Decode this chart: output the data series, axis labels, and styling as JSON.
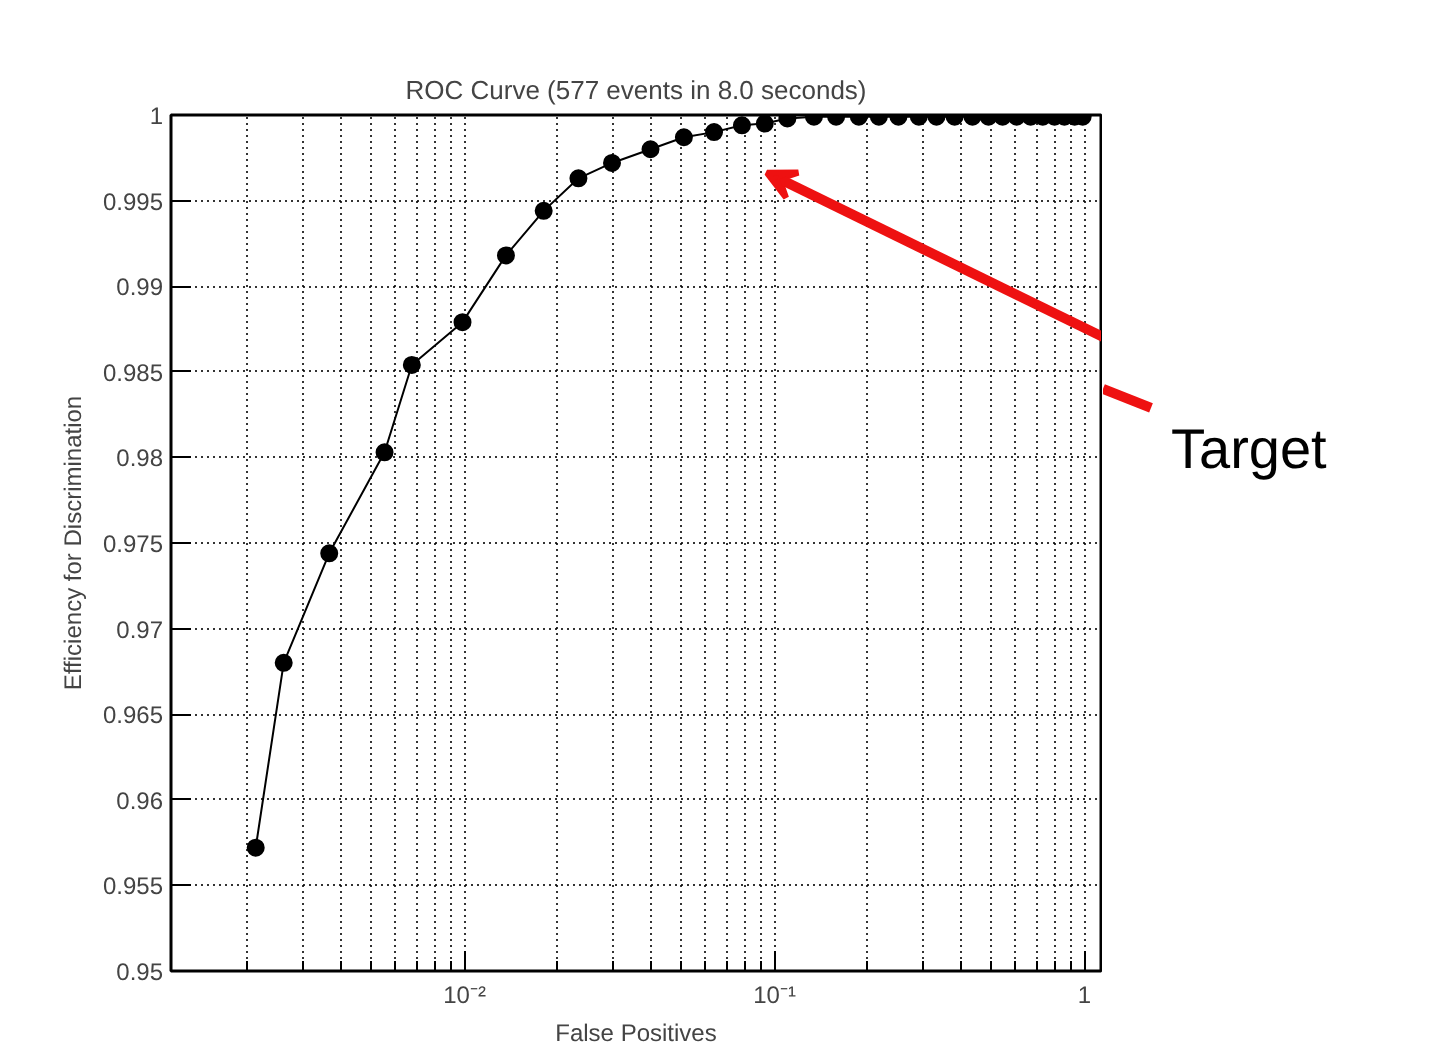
{
  "chart_data": {
    "type": "line",
    "title": "ROC Curve (577 events in 8.0 seconds)",
    "xlabel": "False Positives",
    "ylabel": "Efficiency for Discrimination",
    "log": "x",
    "grid": true,
    "marker": "circle",
    "line_style": "solid",
    "xlim": [
      0.00113,
      1.13
    ],
    "ylim": [
      0.95,
      1.0
    ],
    "xticks": [
      {
        "value": 0.002,
        "label": null
      },
      {
        "value": 0.003,
        "label": null
      },
      {
        "value": 0.004,
        "label": null
      },
      {
        "value": 0.005,
        "label": null
      },
      {
        "value": 0.006,
        "label": null
      },
      {
        "value": 0.007,
        "label": null
      },
      {
        "value": 0.008,
        "label": null
      },
      {
        "value": 0.009,
        "label": null
      },
      {
        "value": 0.01,
        "label": "10⁻²"
      },
      {
        "value": 0.02,
        "label": null
      },
      {
        "value": 0.03,
        "label": null
      },
      {
        "value": 0.04,
        "label": null
      },
      {
        "value": 0.05,
        "label": null
      },
      {
        "value": 0.06,
        "label": null
      },
      {
        "value": 0.07,
        "label": null
      },
      {
        "value": 0.08,
        "label": null
      },
      {
        "value": 0.09,
        "label": null
      },
      {
        "value": 0.1,
        "label": "10⁻¹"
      },
      {
        "value": 0.2,
        "label": null
      },
      {
        "value": 0.3,
        "label": null
      },
      {
        "value": 0.4,
        "label": null
      },
      {
        "value": 0.5,
        "label": null
      },
      {
        "value": 0.6,
        "label": null
      },
      {
        "value": 0.7,
        "label": null
      },
      {
        "value": 0.8,
        "label": null
      },
      {
        "value": 0.9,
        "label": null
      },
      1
    ],
    "yticks": [
      0.95,
      0.955,
      0.96,
      0.965,
      0.97,
      0.975,
      0.98,
      0.985,
      0.99,
      0.995,
      1
    ],
    "series": [
      {
        "color": "#000000",
        "x": [
          0.00212,
          0.00261,
          0.00366,
          0.00552,
          0.00676,
          0.00985,
          0.0136,
          0.018,
          0.0233,
          0.0299,
          0.0398,
          0.051,
          0.0638,
          0.0785,
          0.093,
          0.11,
          0.134,
          0.158,
          0.187,
          0.217,
          0.251,
          0.292,
          0.333,
          0.381,
          0.435,
          0.49,
          0.544,
          0.604,
          0.67,
          0.733,
          0.8,
          0.861,
          0.929,
          0.986
        ],
        "values": [
          0.9572,
          0.968,
          0.9744,
          0.9803,
          0.9854,
          0.9879,
          0.9918,
          0.9944,
          0.9963,
          0.9972,
          0.998,
          0.9987,
          0.999,
          0.9994,
          0.9995,
          0.9998,
          0.9999,
          0.9999,
          0.9999,
          0.9999,
          0.9999,
          0.9999,
          0.9999,
          0.9999,
          0.9999,
          0.9999,
          0.9999,
          0.9999,
          0.9999,
          0.9999,
          0.9999,
          0.9999,
          0.9999,
          0.9999
        ]
      }
    ],
    "annotations": [
      "Target"
    ]
  }
}
